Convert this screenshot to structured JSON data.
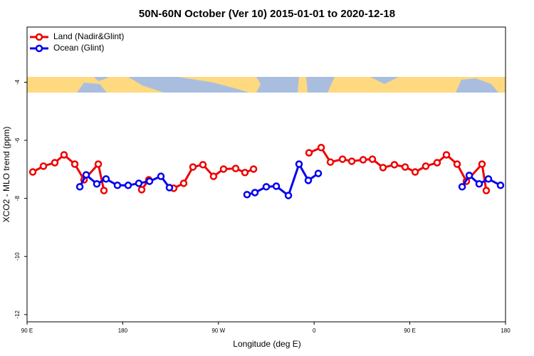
{
  "chart_data": {
    "type": "line",
    "title": "50N-60N October (Ver 10)   2015-01-01 to 2020-12-18",
    "x_label": "Longitude (deg E)",
    "y_label": "XCO2 - MLO trend (ppm)",
    "xlim": [
      90,
      540
    ],
    "ylim": [
      -12.25,
      -2.1
    ],
    "xticks": [
      {
        "value": 90,
        "label": "90 E"
      },
      180,
      {
        "value": 270,
        "label": "90 W"
      },
      {
        "value": 360,
        "label": "0"
      },
      {
        "value": 450,
        "label": "90 E"
      },
      {
        "value": 540,
        "label": "180"
      }
    ],
    "yticks": [
      -12,
      -10,
      -8,
      -6,
      -4
    ],
    "legend": "top-left",
    "series": [
      {
        "name": "Land (Nadir&Glint)",
        "color": "#ee0000",
        "x": [
          95.4,
          105.4,
          116.1,
          124.8,
          134.9,
          143.6,
          157.0,
          162.3,
          null,
          197.8,
          204.5,
          null,
          227.9,
          237.3,
          246.0,
          255.4,
          265.4,
          274.8,
          286.2,
          294.9,
          303.0,
          null,
          355.2,
          366.6,
          375.3,
          386.7,
          395.4,
          406.1,
          414.8,
          424.8,
          435.5,
          445.6,
          455.0,
          465.0,
          475.7,
          484.4,
          494.5,
          503.2,
          517.9,
          521.9
        ],
        "values": [
          -7.09,
          -6.89,
          -6.77,
          -6.5,
          -6.82,
          -7.36,
          -6.82,
          -7.73,
          null,
          -7.7,
          -7.36,
          null,
          -7.65,
          -7.48,
          -6.92,
          -6.84,
          -7.24,
          -6.99,
          -6.97,
          -7.11,
          -6.99,
          null,
          -6.43,
          -6.25,
          -6.75,
          -6.65,
          -6.72,
          -6.67,
          -6.65,
          -6.94,
          -6.84,
          -6.92,
          -7.09,
          -6.89,
          -6.77,
          -6.5,
          -6.82,
          -7.41,
          -6.82,
          -7.73
        ]
      },
      {
        "name": "Ocean (Glint)",
        "color": "#0000ee",
        "x": [
          139.6,
          145.6,
          155.6,
          164.3,
          175.0,
          185.1,
          195.1,
          205.2,
          215.9,
          223.9,
          null,
          296.9,
          304.3,
          315.0,
          324.4,
          335.8,
          345.8,
          354.5,
          363.9,
          null,
          499.2,
          505.9,
          515.2,
          523.9,
          535.3
        ],
        "values": [
          -7.6,
          -7.19,
          -7.5,
          -7.33,
          -7.55,
          -7.55,
          -7.48,
          -7.41,
          -7.24,
          -7.63,
          null,
          -7.87,
          -7.8,
          -7.6,
          -7.58,
          -7.9,
          -6.82,
          -7.38,
          -7.14,
          null,
          -7.6,
          -7.21,
          -7.5,
          -7.33,
          -7.55
        ]
      }
    ]
  }
}
